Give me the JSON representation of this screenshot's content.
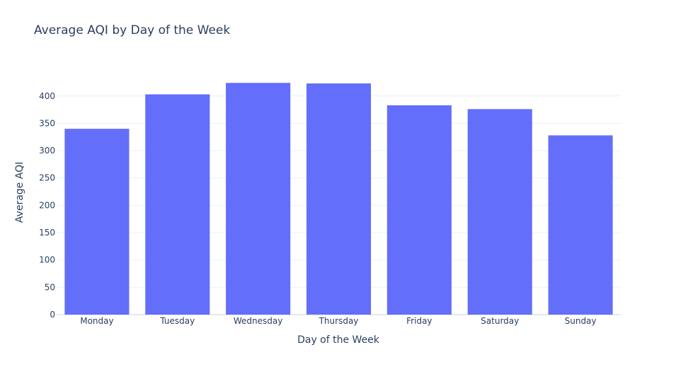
{
  "chart_data": {
    "type": "bar",
    "title": "Average AQI by Day of the Week",
    "xlabel": "Day of the Week",
    "ylabel": "Average AQI",
    "categories": [
      "Monday",
      "Tuesday",
      "Wednesday",
      "Thursday",
      "Friday",
      "Saturday",
      "Sunday"
    ],
    "values": [
      340,
      403,
      424,
      423,
      383,
      376,
      328
    ],
    "yticks": [
      0,
      50,
      100,
      150,
      200,
      250,
      300,
      350,
      400
    ],
    "ylim": [
      0,
      446.3
    ],
    "grid": true,
    "legend": "none",
    "bar_color": "#636efa",
    "grid_color": "#ebf0f8",
    "text_color": "#2a3f5f"
  }
}
